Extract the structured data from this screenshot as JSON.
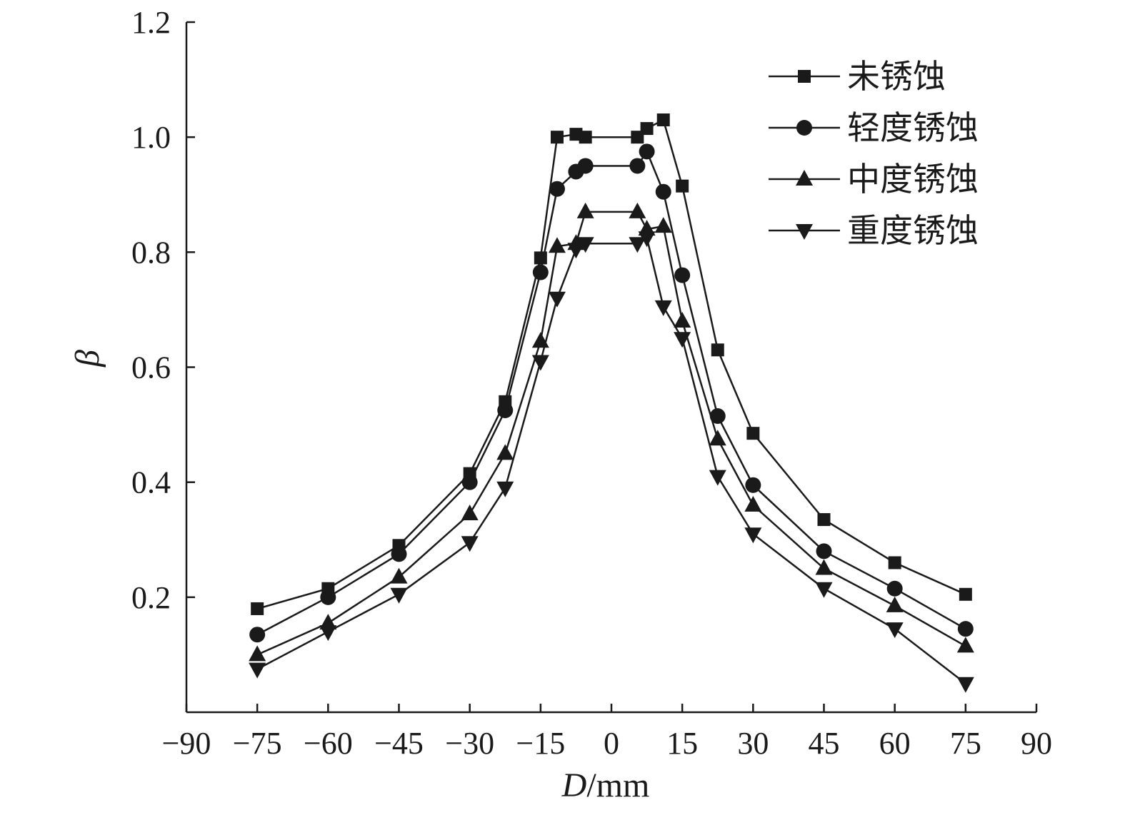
{
  "chart_data": {
    "type": "line",
    "xlabel_italic": "D",
    "xlabel_unit": "/mm",
    "ylabel": "β",
    "xlim": [
      -90,
      90
    ],
    "ylim": [
      0,
      1.2
    ],
    "xticks": [
      -90,
      -75,
      -60,
      -45,
      -30,
      -15,
      0,
      15,
      30,
      45,
      60,
      75,
      90
    ],
    "xtick_labels": [
      "−90",
      "−75",
      "−60",
      "−45",
      "−30",
      "−15",
      "0",
      "15",
      "30",
      "45",
      "60",
      "75",
      "90"
    ],
    "yticks": [
      0.2,
      0.4,
      0.6,
      0.8,
      1.0,
      1.2
    ],
    "ytick_labels": [
      "0.2",
      "0.4",
      "0.6",
      "0.8",
      "1.0",
      "1.2"
    ],
    "grid": false,
    "legend_position": "top-right",
    "series": [
      {
        "name": "未锈蚀",
        "marker": "square",
        "x": [
          -75,
          -60,
          -45,
          -30,
          -22.5,
          -15,
          -11.5,
          -7.5,
          -5.5,
          5.5,
          7.5,
          11,
          15,
          22.5,
          30,
          45,
          60,
          75
        ],
        "y": [
          0.18,
          0.215,
          0.29,
          0.415,
          0.54,
          0.79,
          1.0,
          1.005,
          1.0,
          1.0,
          1.015,
          1.03,
          0.915,
          0.63,
          0.485,
          0.335,
          0.26,
          0.205
        ]
      },
      {
        "name": "轻度锈蚀",
        "marker": "circle",
        "x": [
          -75,
          -60,
          -45,
          -30,
          -22.5,
          -15,
          -11.5,
          -7.5,
          -5.5,
          5.5,
          7.5,
          11,
          15,
          22.5,
          30,
          45,
          60,
          75
        ],
        "y": [
          0.135,
          0.2,
          0.275,
          0.4,
          0.525,
          0.765,
          0.91,
          0.94,
          0.95,
          0.95,
          0.975,
          0.905,
          0.76,
          0.515,
          0.395,
          0.28,
          0.215,
          0.145
        ]
      },
      {
        "name": "中度锈蚀",
        "marker": "triangle-up",
        "x": [
          -75,
          -60,
          -45,
          -30,
          -22.5,
          -15,
          -11.5,
          -7.5,
          -5.5,
          5.5,
          7.5,
          11,
          15,
          22.5,
          30,
          45,
          60,
          75
        ],
        "y": [
          0.1,
          0.155,
          0.235,
          0.345,
          0.45,
          0.645,
          0.81,
          0.815,
          0.87,
          0.87,
          0.84,
          0.845,
          0.68,
          0.475,
          0.36,
          0.25,
          0.185,
          0.115
        ]
      },
      {
        "name": "重度锈蚀",
        "marker": "triangle-down",
        "x": [
          -75,
          -60,
          -45,
          -30,
          -22.5,
          -15,
          -11.5,
          -7.5,
          -5.5,
          5.5,
          7.5,
          11,
          15,
          22.5,
          30,
          45,
          60,
          75
        ],
        "y": [
          0.075,
          0.14,
          0.205,
          0.295,
          0.39,
          0.61,
          0.72,
          0.805,
          0.815,
          0.815,
          0.825,
          0.705,
          0.65,
          0.41,
          0.31,
          0.215,
          0.145,
          0.05
        ]
      }
    ]
  }
}
